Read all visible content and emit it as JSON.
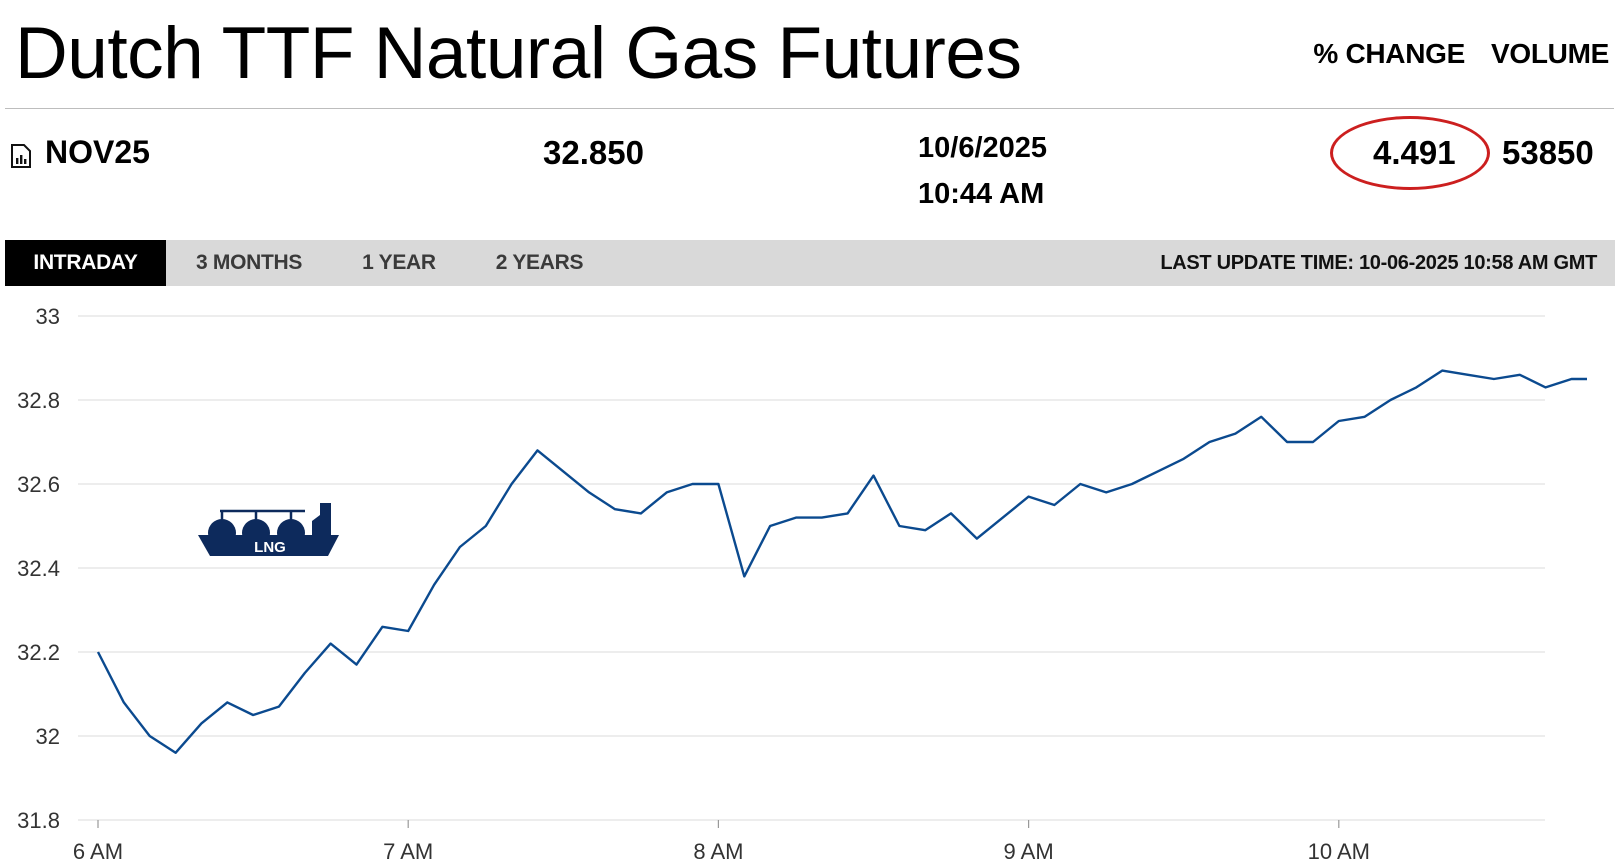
{
  "header": {
    "title": "Dutch TTF Natural Gas Futures",
    "columns": [
      "% CHANGE",
      "VOLUME"
    ]
  },
  "quote": {
    "contract": "NOV25",
    "price": "32.850",
    "date": "10/6/2025",
    "time": "10:44 AM",
    "pct_change": "4.491",
    "volume": "53850"
  },
  "tabs": [
    {
      "label": "INTRADAY",
      "active": true
    },
    {
      "label": "3 MONTHS",
      "active": false
    },
    {
      "label": "1 YEAR",
      "active": false
    },
    {
      "label": "2 YEARS",
      "active": false
    }
  ],
  "last_update": "LAST UPDATE TIME: 10-06-2025 10:58 AM GMT",
  "logo_text": "LNG",
  "colors": {
    "line": "#0b4a8f",
    "annotation": "#cc1f1f",
    "logo": "#0d2a5c",
    "tabbar": "#d9d9d9"
  },
  "chart_data": {
    "type": "line",
    "ylim": [
      31.8,
      33.0
    ],
    "yticks": [
      "33",
      "32.8",
      "32.6",
      "32.4",
      "32.2",
      "32",
      "31.8"
    ],
    "xticks": [
      "6 AM",
      "7 AM",
      "8 AM",
      "9 AM",
      "10 AM"
    ],
    "grid": true,
    "series": [
      {
        "x": [
          "6:00",
          "6:05",
          "6:10",
          "6:15",
          "6:20",
          "6:25",
          "6:30",
          "6:35",
          "6:40",
          "6:45",
          "6:50",
          "6:55",
          "7:00",
          "7:05",
          "7:10",
          "7:15",
          "7:20",
          "7:25",
          "7:30",
          "7:35",
          "7:40",
          "7:45",
          "7:50",
          "7:55",
          "8:00",
          "8:05",
          "8:10",
          "8:15",
          "8:20",
          "8:25",
          "8:30",
          "8:35",
          "8:40",
          "8:45",
          "8:50",
          "8:55",
          "9:00",
          "9:05",
          "9:10",
          "9:15",
          "9:20",
          "9:25",
          "9:30",
          "9:35",
          "9:40",
          "9:45",
          "9:50",
          "9:55",
          "10:00",
          "10:05",
          "10:10",
          "10:15",
          "10:20",
          "10:25",
          "10:30",
          "10:35",
          "10:40",
          "10:45",
          "10:48"
        ],
        "y": [
          32.2,
          32.08,
          32.0,
          31.96,
          32.03,
          32.08,
          32.05,
          32.07,
          32.15,
          32.22,
          32.17,
          32.26,
          32.25,
          32.36,
          32.45,
          32.5,
          32.6,
          32.68,
          32.63,
          32.58,
          32.54,
          32.53,
          32.58,
          32.6,
          32.6,
          32.38,
          32.5,
          32.52,
          32.52,
          32.53,
          32.62,
          32.5,
          32.49,
          32.53,
          32.47,
          32.52,
          32.57,
          32.55,
          32.6,
          32.58,
          32.6,
          32.63,
          32.66,
          32.7,
          32.72,
          32.76,
          32.7,
          32.7,
          32.75,
          32.76,
          32.8,
          32.83,
          32.87,
          32.86,
          32.85,
          32.86,
          32.83,
          32.85,
          32.85
        ]
      }
    ]
  }
}
